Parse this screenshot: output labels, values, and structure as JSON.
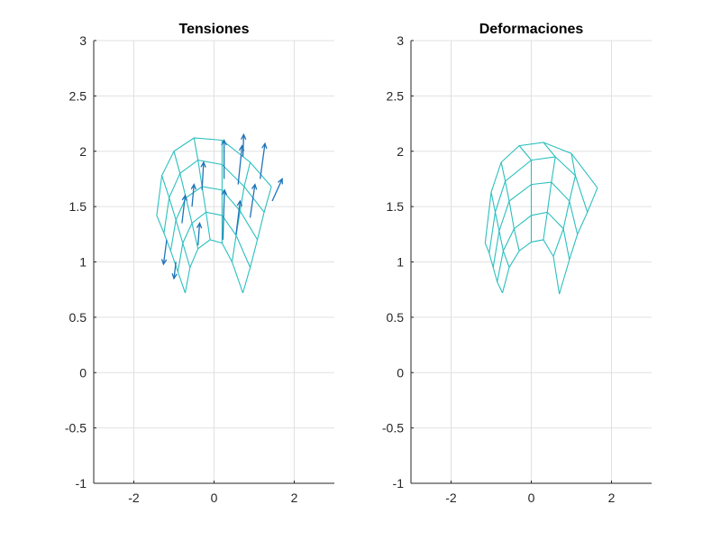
{
  "colors": {
    "mesh": "#2bbfbf",
    "quiver": "#1f73b8",
    "axis": "#262626",
    "grid": "#e0e0e0"
  },
  "chart_data": [
    {
      "type": "mesh",
      "title": "Tensiones",
      "xlim": [
        -3,
        3
      ],
      "ylim": [
        -1,
        3
      ],
      "xticks": [
        -2,
        0,
        2
      ],
      "yticks": [
        -1,
        -0.5,
        0,
        0.5,
        1,
        1.5,
        2,
        2.5,
        3
      ],
      "xtick_labels": [
        "-2",
        "0",
        "2"
      ],
      "ytick_labels": [
        "-1",
        "-0.5",
        "0",
        "0.5",
        "1",
        "1.5",
        "2",
        "2.5",
        "3"
      ],
      "grid": true,
      "mesh_rows": [
        [
          [
            -0.72,
            0.72
          ],
          [
            -0.6,
            0.95
          ],
          [
            -0.4,
            1.12
          ],
          [
            -0.1,
            1.2
          ],
          [
            0.2,
            1.17
          ],
          [
            0.45,
            1.0
          ],
          [
            0.72,
            0.72
          ]
        ],
        [
          [
            -0.9,
            0.91
          ],
          [
            -0.78,
            1.17
          ],
          [
            -0.55,
            1.35
          ],
          [
            -0.2,
            1.45
          ],
          [
            0.2,
            1.42
          ],
          [
            0.55,
            1.24
          ],
          [
            0.9,
            0.95
          ]
        ],
        [
          [
            -1.08,
            1.1
          ],
          [
            -0.95,
            1.38
          ],
          [
            -0.7,
            1.58
          ],
          [
            -0.3,
            1.68
          ],
          [
            0.2,
            1.65
          ],
          [
            0.65,
            1.46
          ],
          [
            1.08,
            1.2
          ]
        ],
        [
          [
            -1.25,
            1.26
          ],
          [
            -1.12,
            1.58
          ],
          [
            -0.85,
            1.8
          ],
          [
            -0.4,
            1.92
          ],
          [
            0.2,
            1.88
          ],
          [
            0.75,
            1.68
          ],
          [
            1.25,
            1.45
          ]
        ],
        [
          [
            -1.43,
            1.42
          ],
          [
            -1.3,
            1.78
          ],
          [
            -1.0,
            2.0
          ],
          [
            -0.5,
            2.12
          ],
          [
            0.2,
            2.1
          ],
          [
            0.9,
            1.9
          ],
          [
            1.43,
            1.68
          ]
        ]
      ],
      "vector_scale": 1,
      "vectors": [
        {
          "x": -1.18,
          "y": 1.2,
          "u": -0.08,
          "v": -0.22
        },
        {
          "x": -0.95,
          "y": 1.0,
          "u": -0.05,
          "v": -0.15
        },
        {
          "x": -0.8,
          "y": 1.35,
          "u": 0.08,
          "v": 0.25
        },
        {
          "x": -0.55,
          "y": 1.5,
          "u": 0.05,
          "v": 0.2
        },
        {
          "x": -0.4,
          "y": 1.15,
          "u": 0.04,
          "v": 0.2
        },
        {
          "x": -0.3,
          "y": 1.65,
          "u": 0.04,
          "v": 0.25
        },
        {
          "x": 0.22,
          "y": 1.2,
          "u": 0.04,
          "v": 0.45
        },
        {
          "x": 0.25,
          "y": 1.75,
          "u": 0.0,
          "v": 0.35
        },
        {
          "x": 0.55,
          "y": 1.25,
          "u": 0.1,
          "v": 0.3
        },
        {
          "x": 0.6,
          "y": 1.7,
          "u": 0.1,
          "v": 0.35
        },
        {
          "x": 0.72,
          "y": 1.95,
          "u": 0.02,
          "v": 0.2
        },
        {
          "x": 0.9,
          "y": 1.4,
          "u": 0.12,
          "v": 0.3
        },
        {
          "x": 1.15,
          "y": 1.75,
          "u": 0.12,
          "v": 0.32
        },
        {
          "x": 1.45,
          "y": 1.55,
          "u": 0.25,
          "v": 0.2
        }
      ]
    },
    {
      "type": "mesh",
      "title": "Deformaciones",
      "xlim": [
        -3,
        3
      ],
      "ylim": [
        -1,
        3
      ],
      "xticks": [
        -2,
        0,
        2
      ],
      "yticks": [
        -1,
        -0.5,
        0,
        0.5,
        1,
        1.5,
        2,
        2.5,
        3
      ],
      "xtick_labels": [
        "-2",
        "0",
        "2"
      ],
      "ytick_labels": [
        "-1",
        "-0.5",
        "0",
        "0.5",
        "1",
        "1.5",
        "2",
        "2.5",
        "3"
      ],
      "grid": true,
      "mesh_rows": [
        [
          [
            -0.72,
            0.72
          ],
          [
            -0.55,
            0.95
          ],
          [
            -0.3,
            1.1
          ],
          [
            0.0,
            1.18
          ],
          [
            0.3,
            1.2
          ],
          [
            0.55,
            1.05
          ],
          [
            0.7,
            0.71
          ]
        ],
        [
          [
            -0.85,
            0.82
          ],
          [
            -0.7,
            1.1
          ],
          [
            -0.43,
            1.3
          ],
          [
            0.0,
            1.42
          ],
          [
            0.4,
            1.45
          ],
          [
            0.8,
            1.3
          ],
          [
            0.95,
            1.02
          ]
        ],
        [
          [
            -0.95,
            0.95
          ],
          [
            -0.8,
            1.28
          ],
          [
            -0.55,
            1.55
          ],
          [
            0.0,
            1.7
          ],
          [
            0.5,
            1.72
          ],
          [
            0.95,
            1.55
          ],
          [
            1.15,
            1.25
          ]
        ],
        [
          [
            -1.05,
            1.08
          ],
          [
            -0.9,
            1.45
          ],
          [
            -0.65,
            1.73
          ],
          [
            0.0,
            1.92
          ],
          [
            0.6,
            1.95
          ],
          [
            1.1,
            1.78
          ],
          [
            1.4,
            1.45
          ]
        ],
        [
          [
            -1.15,
            1.17
          ],
          [
            -1.0,
            1.63
          ],
          [
            -0.75,
            1.9
          ],
          [
            -0.3,
            2.05
          ],
          [
            0.3,
            2.08
          ],
          [
            1.0,
            1.98
          ],
          [
            1.65,
            1.67
          ]
        ]
      ]
    }
  ]
}
